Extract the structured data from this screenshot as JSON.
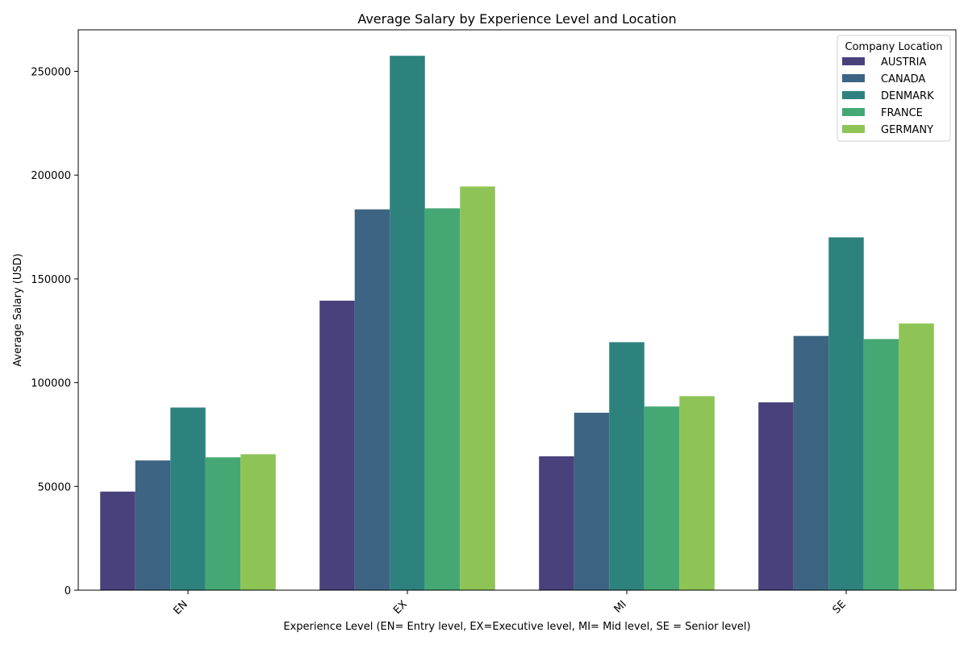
{
  "chart_data": {
    "type": "bar",
    "title": "Average Salary by Experience Level and Location",
    "xlabel": "Experience Level (EN= Entry level, EX=Executive level, MI= Mid level, SE = Senior level)",
    "ylabel": "Average Salary (USD)",
    "categories": [
      "EN",
      "EX",
      "MI",
      "SE"
    ],
    "ylim": [
      0,
      270000
    ],
    "yticks": [
      0,
      50000,
      100000,
      150000,
      200000,
      250000
    ],
    "legend_title": "Company Location",
    "legend_position": "top-right",
    "grid": false,
    "series": [
      {
        "name": "AUSTRIA",
        "color": "#48417b",
        "values": [
          47500,
          139500,
          64500,
          90500
        ]
      },
      {
        "name": "CANADA",
        "color": "#3d6482",
        "values": [
          62500,
          183500,
          85500,
          122500
        ]
      },
      {
        "name": "DENMARK",
        "color": "#2e827e",
        "values": [
          88000,
          257500,
          119500,
          170000
        ]
      },
      {
        "name": "FRANCE",
        "color": "#45a874",
        "values": [
          64000,
          184000,
          88500,
          121000
        ]
      },
      {
        "name": "GERMANY",
        "color": "#8ec456",
        "values": [
          65500,
          194500,
          93500,
          128500
        ]
      }
    ]
  }
}
